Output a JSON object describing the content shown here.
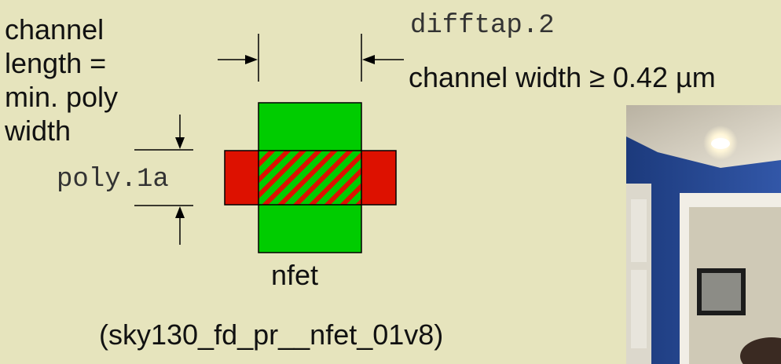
{
  "labels": {
    "channel_length": "channel\nlength =\nmin. poly\nwidth",
    "difftap_rule": "difftap.2",
    "channel_width": "channel width ≥ 0.42 µm",
    "poly_rule": "poly.1a",
    "device_name": "nfet",
    "model_name": "(sky130_fd_pr__nfet_01v8)"
  },
  "colors": {
    "background": "#e6e4bd",
    "diffusion": "#00cc00",
    "poly": "#dd1100",
    "outline": "#000000"
  },
  "icons": [
    "dimension-arrow-right-icon",
    "dimension-arrow-left-icon",
    "dimension-arrow-down-icon",
    "dimension-arrow-up-icon"
  ]
}
